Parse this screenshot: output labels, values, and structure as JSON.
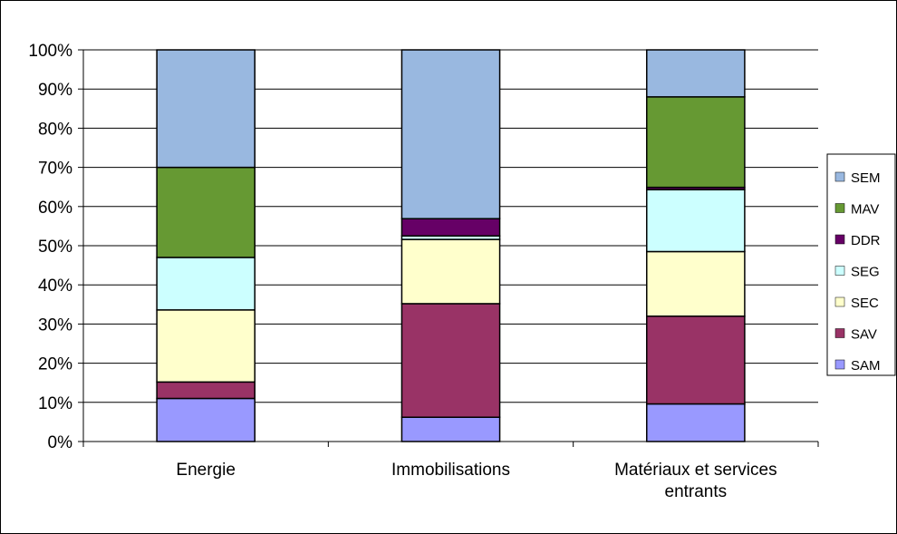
{
  "chart_data": {
    "type": "bar",
    "stacked": true,
    "percent": true,
    "title": "",
    "xlabel": "",
    "ylabel": "",
    "ylim": [
      0,
      100
    ],
    "yticks": [
      "0%",
      "10%",
      "20%",
      "30%",
      "40%",
      "50%",
      "60%",
      "70%",
      "80%",
      "90%",
      "100%"
    ],
    "grid": true,
    "legend_position": "right",
    "categories": [
      [
        "Energie"
      ],
      [
        "Immobilisations"
      ],
      [
        "Matériaux et services",
        "entrants"
      ]
    ],
    "series": [
      {
        "name": "SAM",
        "color": "#9999ff",
        "values": [
          11,
          6.2,
          9.6
        ]
      },
      {
        "name": "SAV",
        "color": "#993366",
        "values": [
          4.2,
          29,
          22.4
        ]
      },
      {
        "name": "SEC",
        "color": "#ffffcc",
        "values": [
          18.4,
          16.4,
          16.5
        ]
      },
      {
        "name": "SEG",
        "color": "#ccffff",
        "values": [
          13.4,
          0.9,
          15.8
        ]
      },
      {
        "name": "DDR",
        "color": "#660066",
        "values": [
          0,
          4.4,
          0.6
        ]
      },
      {
        "name": "MAV",
        "color": "#669933",
        "values": [
          23,
          0,
          23.1
        ]
      },
      {
        "name": "SEM",
        "color": "#99b8e0",
        "values": [
          30,
          43.1,
          12
        ]
      }
    ]
  }
}
